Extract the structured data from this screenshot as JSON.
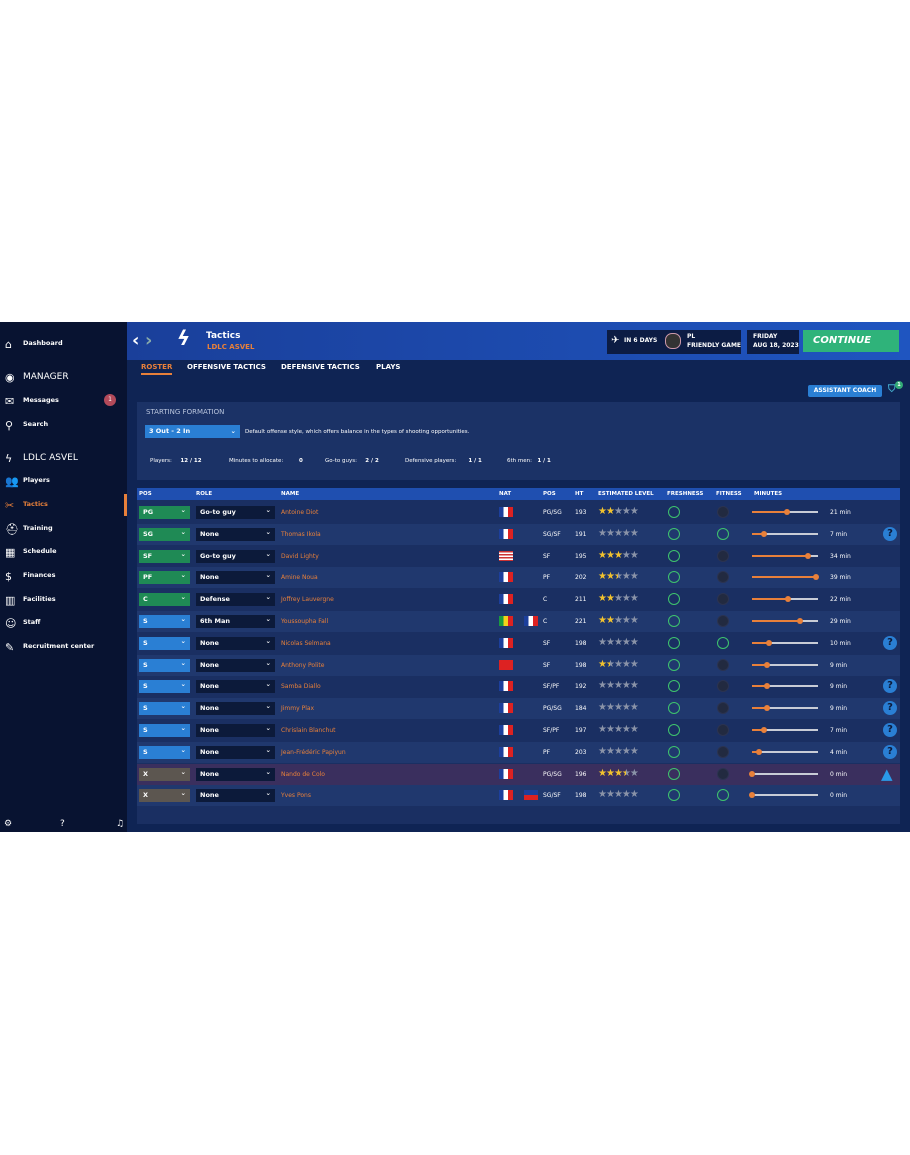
{
  "sidebar": {
    "items": [
      "Dashboard",
      "MANAGER",
      "Messages",
      "Search",
      "LDLC ASVEL",
      "Players",
      "Tactics",
      "Training",
      "Schedule",
      "Finances",
      "Facilities",
      "Staff",
      "Recruitment center"
    ],
    "messages_badge": 1
  },
  "header": {
    "title": "Tactics",
    "team": "LDLC ASVEL",
    "countdown": "IN 6 DAYS",
    "league": "PL",
    "match_type": "FRIENDLY GAME",
    "day": "FRIDAY",
    "date": "AUG 18, 2023",
    "continue": "CONTINUE"
  },
  "tabs": [
    "ROSTER",
    "OFFENSIVE TACTICS",
    "DEFENSIVE TACTICS",
    "PLAYS"
  ],
  "assistant_coach": "ASSISTANT COACH",
  "filter_badge": 1,
  "formation": {
    "title": "STARTING FORMATION",
    "selected": "3 Out - 2 In",
    "description": "Default offense style, which offers balance in the types of shooting opportunities.",
    "stats": [
      {
        "label": "Players:",
        "value": "12 / 12"
      },
      {
        "label": "Minutes to allocate:",
        "value": 0
      },
      {
        "label": "Go-to guys:",
        "value": "2 / 2"
      },
      {
        "label": "Defensive players:",
        "value": "1 / 1"
      },
      {
        "label": "6th men:",
        "value": "1 / 1"
      }
    ]
  },
  "table": {
    "columns": [
      "POS",
      "ROLE",
      "NAME",
      "NAT",
      "POS",
      "HT",
      "ESTIMATED LEVEL",
      "FRESHNESS",
      "FITNESS",
      "MINUTES"
    ],
    "rows": [
      {
        "slot": "PG",
        "role": "Go-to guy",
        "name": "Antoine Diot",
        "pos": "PG/SG",
        "ht": 193,
        "level": 2,
        "minutes": {
          "value": 21,
          "label": "21 min"
        }
      },
      {
        "slot": "SG",
        "role": "None",
        "name": "Thomas Ikola",
        "pos": "SG/SF",
        "ht": 191,
        "level": 0,
        "minutes": {
          "value": 7,
          "label": "7 min"
        }
      },
      {
        "slot": "SF",
        "role": "Go-to guy",
        "name": "David Lighty",
        "pos": "SF",
        "ht": 195,
        "level": 3,
        "minutes": {
          "value": 34,
          "label": "34 min"
        }
      },
      {
        "slot": "PF",
        "role": "None",
        "name": "Amine Noua",
        "pos": "PF",
        "ht": 202,
        "level": 2.5,
        "minutes": {
          "value": 39,
          "label": "39 min"
        }
      },
      {
        "slot": "C",
        "role": "Defense",
        "name": "Joffrey Lauvergne",
        "pos": "C",
        "ht": 211,
        "level": 2,
        "minutes": {
          "value": 22,
          "label": "22 min"
        }
      },
      {
        "slot": "S",
        "role": "6th Man",
        "name": "Youssoupha Fall",
        "pos": "C",
        "ht": 221,
        "level": 2,
        "minutes": {
          "value": 29,
          "label": "29 min"
        }
      },
      {
        "slot": "S",
        "role": "None",
        "name": "Nicolas Selmana",
        "pos": "SF",
        "ht": 198,
        "level": 0,
        "minutes": {
          "value": 10,
          "label": "10 min"
        }
      },
      {
        "slot": "S",
        "role": "None",
        "name": "Anthony Polite",
        "pos": "SF",
        "ht": 198,
        "level": 1.5,
        "minutes": {
          "value": 9,
          "label": "9 min"
        }
      },
      {
        "slot": "S",
        "role": "None",
        "name": "Samba Diallo",
        "pos": "SF/PF",
        "ht": 192,
        "level": 0,
        "minutes": {
          "value": 9,
          "label": "9 min"
        }
      },
      {
        "slot": "S",
        "role": "None",
        "name": "Jimmy Plax",
        "pos": "PG/SG",
        "ht": 184,
        "level": 0,
        "minutes": {
          "value": 9,
          "label": "9 min"
        }
      },
      {
        "slot": "S",
        "role": "None",
        "name": "Chrislain Blanchut",
        "pos": "SF/PF",
        "ht": 197,
        "level": 0,
        "minutes": {
          "value": 7,
          "label": "7 min"
        }
      },
      {
        "slot": "S",
        "role": "None",
        "name": "Jean-Frédéric Papiyun",
        "pos": "PF",
        "ht": 203,
        "level": 0,
        "minutes": {
          "value": 4,
          "label": "4 min"
        }
      },
      {
        "slot": "X",
        "role": "None",
        "name": "Nando de Colo",
        "pos": "PG/SG",
        "ht": 196,
        "level": 3.5,
        "minutes": {
          "value": 0,
          "label": "0 min"
        }
      },
      {
        "slot": "X",
        "role": "None",
        "name": "Yves Pons",
        "pos": "SG/SF",
        "ht": 198,
        "level": 0,
        "minutes": {
          "value": 0,
          "label": "0 min"
        }
      }
    ]
  }
}
